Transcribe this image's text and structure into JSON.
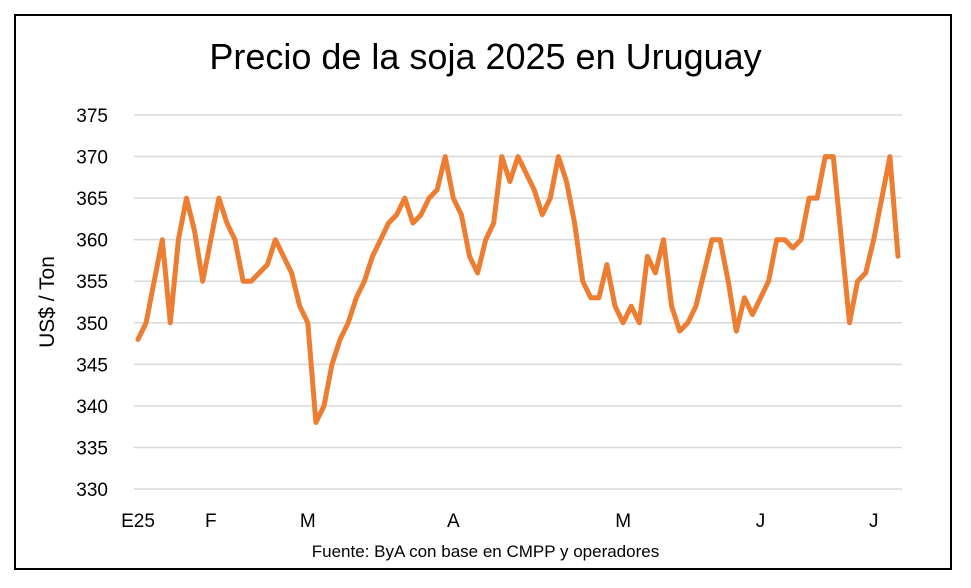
{
  "chart_data": {
    "type": "line",
    "title": "Precio de la soja 2025 en Uruguay",
    "xlabel": "",
    "ylabel": "US$ / Ton",
    "source": "Fuente: ByA con base en CMPP y operadores",
    "ylim": [
      330,
      375
    ],
    "yticks": [
      330,
      335,
      340,
      345,
      350,
      355,
      360,
      365,
      370,
      375
    ],
    "grid": true,
    "legend": "none",
    "line_color": "#ED7D31",
    "x_tick_labels": [
      {
        "label": "E25",
        "index": 0
      },
      {
        "label": "F",
        "index": 9
      },
      {
        "label": "M",
        "index": 21
      },
      {
        "label": "A",
        "index": 39
      },
      {
        "label": "M",
        "index": 60
      },
      {
        "label": "J",
        "index": 77
      },
      {
        "label": "J",
        "index": 91
      }
    ],
    "series": [
      {
        "values": [
          348,
          350,
          355,
          360,
          350,
          360,
          365,
          361,
          355,
          360,
          365,
          362,
          360,
          355,
          355,
          356,
          357,
          360,
          358,
          356,
          352,
          350,
          338,
          340,
          345,
          348,
          350,
          353,
          355,
          358,
          360,
          362,
          363,
          365,
          362,
          363,
          365,
          366,
          370,
          365,
          363,
          358,
          356,
          360,
          362,
          370,
          367,
          370,
          368,
          366,
          363,
          365,
          370,
          367,
          362,
          355,
          353,
          353,
          357,
          352,
          350,
          352,
          350,
          358,
          356,
          360,
          352,
          349,
          350,
          352,
          356,
          360,
          360,
          355,
          349,
          353,
          351,
          353,
          355,
          360,
          360,
          359,
          360,
          365,
          365,
          370,
          370,
          360,
          350,
          355,
          356,
          360,
          365,
          370,
          358
        ]
      }
    ]
  }
}
